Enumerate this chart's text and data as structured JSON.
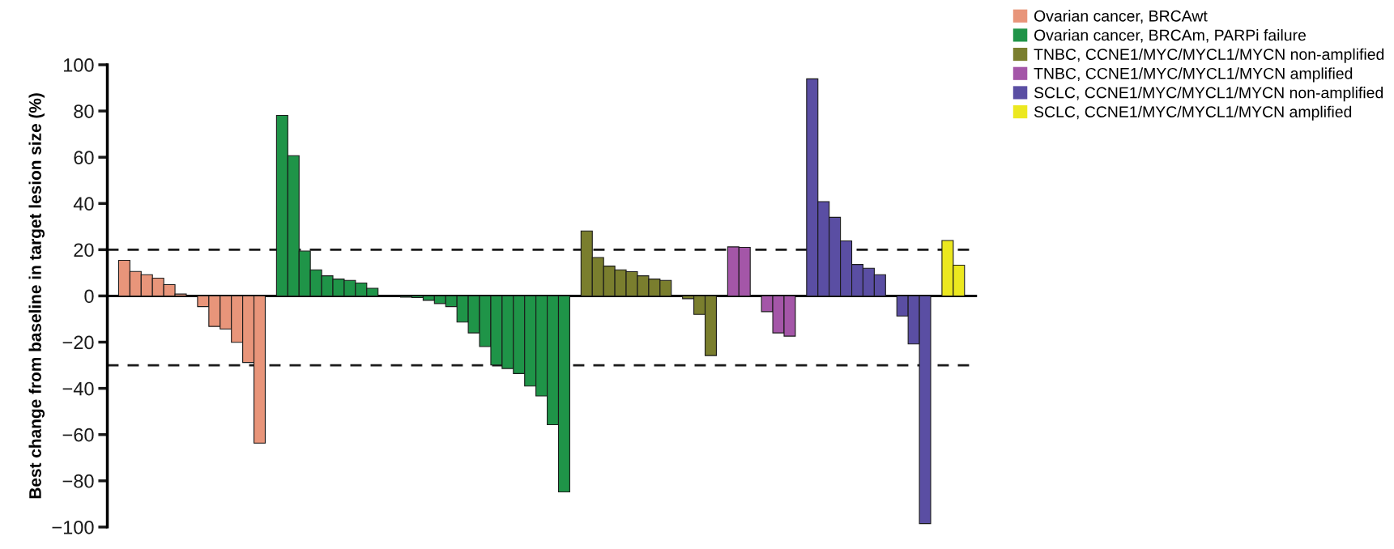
{
  "chart_data": {
    "type": "bar",
    "ylabel": "Best change from baseline in target lesion size (%)",
    "categories": [
      null,
      null,
      null,
      null,
      null,
      null,
      null,
      null,
      null,
      null,
      null,
      null,
      null,
      null,
      null,
      null,
      null,
      null,
      null,
      null,
      null,
      null,
      null,
      null,
      null,
      null,
      null,
      null,
      null,
      null,
      null,
      null,
      null,
      null,
      null,
      null,
      null,
      null,
      null,
      null,
      null,
      null,
      null,
      null,
      null,
      null,
      null,
      null,
      null,
      null,
      null,
      null,
      null,
      null,
      null,
      null,
      null,
      null,
      null,
      null,
      null,
      null,
      null,
      null,
      null,
      null,
      null,
      null,
      null,
      null,
      null,
      null,
      null,
      null,
      null,
      null,
      null
    ],
    "series": [
      {
        "name": "Ovarian cancer, BRCAwt",
        "color": "#e8957a",
        "values": [
          null,
          15.4,
          10.6,
          9.2,
          7.7,
          4.9,
          0.8,
          null,
          -4.6,
          -13.2,
          -14.3,
          -20.1,
          -28.8,
          -63.7,
          null,
          null,
          null,
          null,
          null,
          null,
          null,
          null,
          null,
          null,
          null,
          null,
          null,
          null,
          null,
          null,
          null,
          null,
          null,
          null,
          null,
          null,
          null,
          null,
          null,
          null,
          null,
          null,
          null,
          null,
          null,
          null,
          null,
          null,
          null,
          null,
          null,
          null,
          null,
          null,
          null,
          null,
          null,
          null,
          null,
          null,
          null,
          null,
          null,
          null,
          null,
          null,
          null,
          null,
          null,
          null,
          null,
          null,
          null,
          null,
          null,
          null,
          null
        ]
      },
      {
        "name": "Ovarian cancer, BRCAm, PARPi failure",
        "color": "#1f9448",
        "values": [
          null,
          null,
          null,
          null,
          null,
          null,
          null,
          null,
          null,
          null,
          null,
          null,
          null,
          null,
          null,
          78.1,
          60.7,
          19.4,
          11.3,
          8.7,
          7.3,
          6.7,
          5.6,
          3.3,
          null,
          null,
          -0.5,
          -0.7,
          -1.9,
          -3.3,
          -4.6,
          -11.3,
          -16,
          -21.9,
          -29.9,
          -31.4,
          -33.6,
          -39,
          -43.3,
          -55.7,
          -84.8,
          null,
          null,
          null,
          null,
          null,
          null,
          null,
          null,
          null,
          null,
          null,
          null,
          null,
          null,
          null,
          null,
          null,
          null,
          null,
          null,
          null,
          null,
          null,
          null,
          null,
          null,
          null,
          null,
          null,
          null,
          null,
          null,
          null,
          null,
          null,
          null
        ]
      },
      {
        "name": "TNBC, CCNE1/MYC/MYCL1/MYCN non-amplified",
        "color": "#7a7e2e",
        "values": [
          null,
          null,
          null,
          null,
          null,
          null,
          null,
          null,
          null,
          null,
          null,
          null,
          null,
          null,
          null,
          null,
          null,
          null,
          null,
          null,
          null,
          null,
          null,
          null,
          null,
          null,
          null,
          null,
          null,
          null,
          null,
          null,
          null,
          null,
          null,
          null,
          null,
          null,
          null,
          null,
          null,
          null,
          28.1,
          16.6,
          12.9,
          11.3,
          10.5,
          8.7,
          7.3,
          6.7,
          null,
          -1.2,
          -8,
          -25.8,
          null,
          null,
          null,
          null,
          null,
          null,
          null,
          null,
          null,
          null,
          null,
          null,
          null,
          null,
          null,
          null,
          null,
          null,
          null,
          null,
          null,
          null,
          null
        ]
      },
      {
        "name": "TNBC, CCNE1/MYC/MYCL1/MYCN amplified",
        "color": "#a456a8",
        "values": [
          null,
          null,
          null,
          null,
          null,
          null,
          null,
          null,
          null,
          null,
          null,
          null,
          null,
          null,
          null,
          null,
          null,
          null,
          null,
          null,
          null,
          null,
          null,
          null,
          null,
          null,
          null,
          null,
          null,
          null,
          null,
          null,
          null,
          null,
          null,
          null,
          null,
          null,
          null,
          null,
          null,
          null,
          null,
          null,
          null,
          null,
          null,
          null,
          null,
          null,
          null,
          null,
          null,
          null,
          null,
          21.2,
          21,
          null,
          -6.8,
          -16,
          -17.4,
          null,
          null,
          null,
          null,
          null,
          null,
          null,
          null,
          null,
          null,
          null,
          null,
          null,
          null,
          null,
          null
        ]
      },
      {
        "name": "SCLC, CCNE1/MYC/MYCL1/MYCN non-amplified",
        "color": "#5a4ea3",
        "values": [
          null,
          null,
          null,
          null,
          null,
          null,
          null,
          null,
          null,
          null,
          null,
          null,
          null,
          null,
          null,
          null,
          null,
          null,
          null,
          null,
          null,
          null,
          null,
          null,
          null,
          null,
          null,
          null,
          null,
          null,
          null,
          null,
          null,
          null,
          null,
          null,
          null,
          null,
          null,
          null,
          null,
          null,
          null,
          null,
          null,
          null,
          null,
          null,
          null,
          null,
          null,
          null,
          null,
          null,
          null,
          null,
          null,
          null,
          null,
          null,
          null,
          null,
          93.9,
          40.8,
          34,
          23.8,
          13.6,
          12,
          9.2,
          null,
          -8.7,
          -20.8,
          -98.5,
          null,
          null,
          null,
          null
        ]
      },
      {
        "name": "SCLC, CCNE1/MYC/MYCL1/MYCN amplified",
        "color": "#ece81f",
        "values": [
          null,
          null,
          null,
          null,
          null,
          null,
          null,
          null,
          null,
          null,
          null,
          null,
          null,
          null,
          null,
          null,
          null,
          null,
          null,
          null,
          null,
          null,
          null,
          null,
          null,
          null,
          null,
          null,
          null,
          null,
          null,
          null,
          null,
          null,
          null,
          null,
          null,
          null,
          null,
          null,
          null,
          null,
          null,
          null,
          null,
          null,
          null,
          null,
          null,
          null,
          null,
          null,
          null,
          null,
          null,
          null,
          null,
          null,
          null,
          null,
          null,
          null,
          null,
          null,
          null,
          null,
          null,
          null,
          null,
          null,
          null,
          null,
          null,
          null,
          24,
          13.3,
          null
        ]
      }
    ],
    "ylim": [
      -100,
      100
    ],
    "yticks": [
      -100,
      -80,
      -60,
      -40,
      -20,
      0,
      20,
      40,
      60,
      80,
      100
    ],
    "ref_lines": [
      {
        "axis": "y",
        "value": 20,
        "line_style": "dashed",
        "color": "#1a1a1a"
      },
      {
        "axis": "y",
        "value": -30,
        "line_style": "dashed",
        "color": "#1a1a1a"
      }
    ],
    "legend": "top right",
    "grid": false,
    "tick_labels": "y"
  }
}
